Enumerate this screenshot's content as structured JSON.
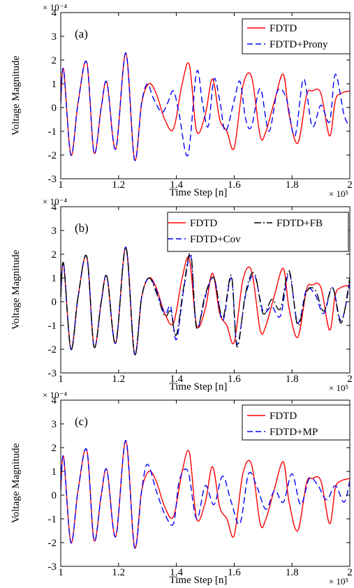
{
  "chart_data": [
    {
      "type": "line",
      "panel_label": "(a)",
      "xlabel": "Time Step [n]",
      "ylabel": "Voltage Magnitude",
      "y_multiplier": "× 10⁻⁴",
      "x_multiplier": "× 10⁵",
      "xlim": [
        1,
        2
      ],
      "ylim": [
        -3,
        4
      ],
      "xticks": [
        "1",
        "1.2",
        "1.4",
        "1.6",
        "1.8",
        "2"
      ],
      "yticks": [
        "-3",
        "-2",
        "-1",
        "0",
        "1",
        "2",
        "3",
        "4"
      ],
      "legend_position": "top-right",
      "series": [
        {
          "name": "FDTD",
          "color": "#ff0000",
          "dash": "solid",
          "x": [
            1.0,
            1.01,
            1.035,
            1.06,
            1.09,
            1.115,
            1.14,
            1.16,
            1.19,
            1.225,
            1.255,
            1.28,
            1.305,
            1.33,
            1.36,
            1.39,
            1.42,
            1.445,
            1.47,
            1.5,
            1.525,
            1.55,
            1.575,
            1.6,
            1.63,
            1.66,
            1.69,
            1.71,
            1.74,
            1.77,
            1.79,
            1.82,
            1.85,
            1.87,
            1.9,
            1.93,
            1.95,
            1.97,
            2.0
          ],
          "y": [
            0.2,
            1.6,
            -2.0,
            0.2,
            1.9,
            -1.9,
            0.0,
            1.05,
            -1.75,
            2.3,
            -2.2,
            0.2,
            1.0,
            0.6,
            -0.5,
            -0.9,
            1.0,
            1.8,
            -1.0,
            -0.3,
            1.2,
            -0.5,
            -1.0,
            -1.7,
            0.9,
            1.3,
            -1.2,
            -1.0,
            0.3,
            1.4,
            -0.3,
            -1.5,
            0.5,
            0.7,
            0.6,
            -1.2,
            0.3,
            0.6,
            0.7
          ]
        },
        {
          "name": "FDTD+Prony",
          "color": "#0000ff",
          "dash": "dashed",
          "x": [
            1.0,
            1.01,
            1.035,
            1.06,
            1.09,
            1.115,
            1.14,
            1.16,
            1.19,
            1.225,
            1.255,
            1.28,
            1.3,
            1.32,
            1.35,
            1.37,
            1.39,
            1.41,
            1.44,
            1.47,
            1.49,
            1.51,
            1.53,
            1.55,
            1.57,
            1.6,
            1.62,
            1.64,
            1.66,
            1.69,
            1.72,
            1.75,
            1.78,
            1.81,
            1.84,
            1.87,
            1.9,
            1.93,
            1.95,
            1.98,
            2.0
          ],
          "y": [
            0.2,
            1.6,
            -2.0,
            0.2,
            1.9,
            -1.9,
            0.0,
            1.05,
            -1.75,
            2.3,
            -2.2,
            0.2,
            1.0,
            0.4,
            -0.2,
            0.2,
            0.7,
            -0.3,
            -2.0,
            1.5,
            0.2,
            -0.8,
            1.2,
            0.3,
            -1.0,
            0.3,
            1.1,
            -0.5,
            -0.8,
            0.8,
            -1.0,
            0.7,
            0.4,
            -1.2,
            1.2,
            -0.8,
            0.1,
            -0.6,
            1.4,
            -0.3,
            -0.8
          ]
        }
      ]
    },
    {
      "type": "line",
      "panel_label": "(b)",
      "xlabel": "Time Step [n]",
      "ylabel": "Voltage Magnitude",
      "y_multiplier": "× 10⁻⁴",
      "x_multiplier": "× 10⁵",
      "xlim": [
        1,
        2
      ],
      "ylim": [
        -3,
        4
      ],
      "xticks": [
        "1",
        "1.2",
        "1.4",
        "1.6",
        "1.8",
        "2"
      ],
      "yticks": [
        "-3",
        "-2",
        "-1",
        "0",
        "1",
        "2",
        "3",
        "4"
      ],
      "legend_position": "top-right",
      "series": [
        {
          "name": "FDTD",
          "color": "#ff0000",
          "dash": "solid",
          "x": [
            1.0,
            1.01,
            1.035,
            1.06,
            1.09,
            1.115,
            1.14,
            1.16,
            1.19,
            1.225,
            1.255,
            1.28,
            1.305,
            1.33,
            1.36,
            1.39,
            1.42,
            1.445,
            1.47,
            1.5,
            1.525,
            1.55,
            1.575,
            1.6,
            1.63,
            1.66,
            1.69,
            1.71,
            1.74,
            1.77,
            1.79,
            1.82,
            1.85,
            1.87,
            1.9,
            1.93,
            1.95,
            1.97,
            2.0
          ],
          "y": [
            0.2,
            1.6,
            -2.0,
            0.2,
            1.9,
            -1.9,
            0.0,
            1.05,
            -1.75,
            2.3,
            -2.2,
            0.2,
            1.0,
            0.6,
            -0.5,
            -0.9,
            1.0,
            1.8,
            -1.0,
            -0.3,
            1.2,
            -0.5,
            -1.0,
            -1.7,
            0.9,
            1.3,
            -1.2,
            -1.0,
            0.3,
            1.4,
            -0.3,
            -1.5,
            0.5,
            0.7,
            0.6,
            -1.2,
            0.3,
            0.6,
            0.7
          ]
        },
        {
          "name": "FDTD+Cov",
          "color": "#0000ff",
          "dash": "dashed",
          "x": [
            1.0,
            1.01,
            1.035,
            1.06,
            1.09,
            1.115,
            1.14,
            1.16,
            1.19,
            1.225,
            1.255,
            1.28,
            1.305,
            1.33,
            1.36,
            1.38,
            1.4,
            1.425,
            1.45,
            1.47,
            1.5,
            1.53,
            1.56,
            1.59,
            1.61,
            1.64,
            1.67,
            1.7,
            1.73,
            1.76,
            1.79,
            1.82,
            1.85,
            1.88,
            1.91,
            1.94,
            1.97,
            2.0
          ],
          "y": [
            0.2,
            1.6,
            -2.0,
            0.2,
            1.9,
            -1.9,
            0.0,
            1.05,
            -1.75,
            2.3,
            -2.2,
            0.2,
            1.0,
            0.5,
            -0.5,
            -0.2,
            -1.6,
            0.5,
            1.9,
            -1.1,
            0.2,
            1.0,
            -0.8,
            1.0,
            -1.8,
            0.3,
            1.1,
            -0.4,
            -0.2,
            -0.6,
            1.2,
            -0.9,
            0.5,
            0.3,
            -0.5,
            0.6,
            -0.8,
            0.8
          ]
        },
        {
          "name": "FDTD+FB",
          "color": "#000000",
          "dash": "dashdot",
          "x": [
            1.0,
            1.01,
            1.035,
            1.06,
            1.09,
            1.115,
            1.14,
            1.16,
            1.19,
            1.225,
            1.255,
            1.28,
            1.305,
            1.33,
            1.36,
            1.38,
            1.4,
            1.425,
            1.45,
            1.47,
            1.5,
            1.53,
            1.56,
            1.59,
            1.61,
            1.64,
            1.67,
            1.7,
            1.73,
            1.76,
            1.79,
            1.82,
            1.85,
            1.88,
            1.91,
            1.94,
            1.97,
            2.0
          ],
          "y": [
            0.2,
            1.6,
            -2.0,
            0.2,
            1.9,
            -1.9,
            0.0,
            1.05,
            -1.75,
            2.3,
            -2.2,
            0.2,
            1.0,
            0.4,
            -0.6,
            -0.4,
            -1.4,
            0.6,
            2.0,
            -1.1,
            0.3,
            1.0,
            -0.7,
            1.1,
            -1.9,
            0.4,
            1.2,
            -0.5,
            0.1,
            -0.3,
            1.3,
            -1.0,
            0.4,
            0.5,
            -0.4,
            0.6,
            -0.9,
            1.0
          ]
        }
      ]
    },
    {
      "type": "line",
      "panel_label": "(c)",
      "xlabel": "Time Step [n]",
      "ylabel": "Voltage Magnitude",
      "y_multiplier": "× 10⁻⁴",
      "x_multiplier": "× 10⁵",
      "xlim": [
        1,
        2
      ],
      "ylim": [
        -3,
        4
      ],
      "xticks": [
        "1",
        "1.2",
        "1.4",
        "1.6",
        "1.8",
        "2"
      ],
      "yticks": [
        "-3",
        "-2",
        "-1",
        "0",
        "1",
        "2",
        "3",
        "4"
      ],
      "legend_position": "top-right",
      "series": [
        {
          "name": "FDTD",
          "color": "#ff0000",
          "dash": "solid",
          "x": [
            1.0,
            1.01,
            1.035,
            1.06,
            1.09,
            1.115,
            1.14,
            1.16,
            1.19,
            1.225,
            1.255,
            1.28,
            1.305,
            1.33,
            1.36,
            1.39,
            1.42,
            1.445,
            1.47,
            1.5,
            1.525,
            1.55,
            1.575,
            1.6,
            1.63,
            1.66,
            1.69,
            1.71,
            1.74,
            1.77,
            1.79,
            1.82,
            1.85,
            1.87,
            1.9,
            1.93,
            1.95,
            1.97,
            2.0
          ],
          "y": [
            0.2,
            1.6,
            -2.0,
            0.2,
            1.9,
            -1.9,
            0.0,
            1.05,
            -1.75,
            2.3,
            -2.2,
            0.2,
            1.0,
            0.6,
            -0.5,
            -0.9,
            1.0,
            1.8,
            -1.0,
            -0.3,
            1.2,
            -0.5,
            -1.0,
            -1.7,
            0.9,
            1.3,
            -1.2,
            -1.0,
            0.3,
            1.4,
            -0.3,
            -1.5,
            0.5,
            0.7,
            0.6,
            -1.2,
            0.3,
            0.6,
            0.7
          ]
        },
        {
          "name": "FDTD+MP",
          "color": "#0000ff",
          "dash": "dashed",
          "x": [
            1.0,
            1.01,
            1.035,
            1.06,
            1.09,
            1.115,
            1.14,
            1.16,
            1.19,
            1.225,
            1.255,
            1.28,
            1.3,
            1.33,
            1.36,
            1.39,
            1.41,
            1.44,
            1.47,
            1.5,
            1.53,
            1.56,
            1.59,
            1.62,
            1.65,
            1.68,
            1.71,
            1.74,
            1.77,
            1.8,
            1.83,
            1.86,
            1.89,
            1.92,
            1.95,
            1.98,
            2.0
          ],
          "y": [
            0.2,
            1.6,
            -2.0,
            0.2,
            1.9,
            -1.9,
            0.0,
            1.05,
            -1.75,
            2.3,
            -2.2,
            0.2,
            1.3,
            0.2,
            -0.8,
            -1.2,
            0.6,
            1.0,
            -1.0,
            0.4,
            -0.4,
            0.8,
            -0.3,
            -1.2,
            0.9,
            0.3,
            -0.6,
            0.2,
            -0.3,
            0.9,
            -0.4,
            0.7,
            0.4,
            -0.2,
            0.4,
            -0.3,
            0.6
          ]
        }
      ]
    }
  ]
}
